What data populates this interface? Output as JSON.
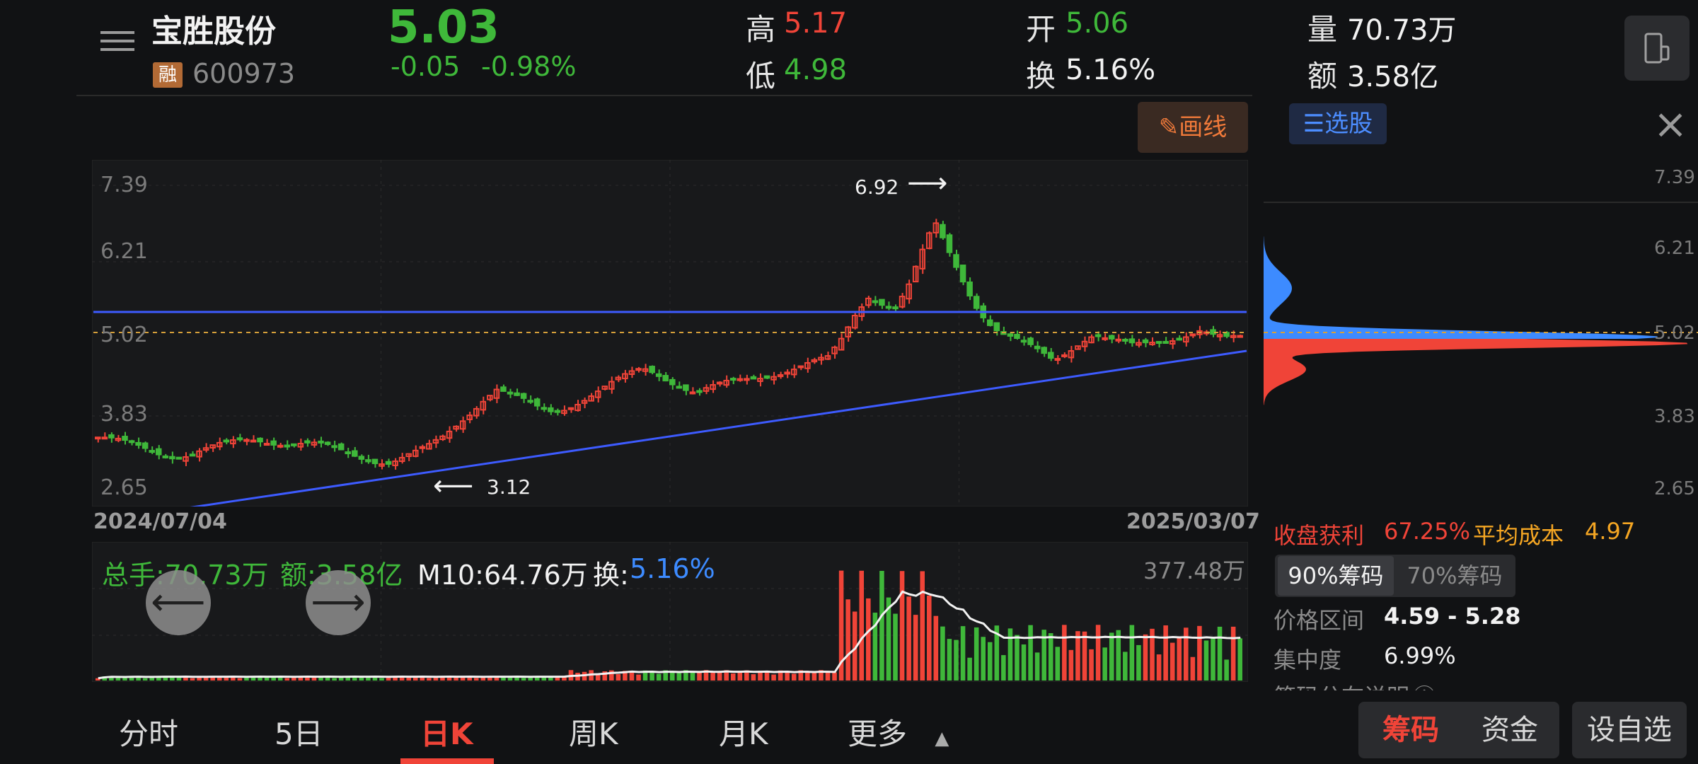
{
  "header": {
    "stock_name": "宝胜股份",
    "margin_tag": "融",
    "stock_code": "600973",
    "price": "5.03",
    "change": "-0.05",
    "change_pct": "-0.98%",
    "high_label": "高",
    "high_value": "5.17",
    "low_label": "低",
    "low_value": "4.98",
    "open_label": "开",
    "open_value": "5.06",
    "turnover_label": "换",
    "turnover_value": "5.16%",
    "volume_label": "量",
    "volume_value": "70.73万",
    "amount_label": "额",
    "amount_value": "3.58亿"
  },
  "toolbar": {
    "draw_label": "画线",
    "select_stock_label": "选股"
  },
  "main_chart": {
    "y_ticks": [
      "7.39",
      "6.21",
      "5.02",
      "3.83",
      "2.65"
    ],
    "start_date": "2024/07/04",
    "end_date": "2025/03/07",
    "annotation_high": "6.92",
    "annotation_low": "3.12"
  },
  "volume_panel": {
    "total_hands": "总手:70.73万",
    "amount": "额:3.58亿",
    "ma10": "M10:64.76万",
    "turnover_label": "换:",
    "turnover_value": "5.16%",
    "max_volume": "377.48万"
  },
  "chip_panel": {
    "y_ticks": [
      "7.39",
      "6.21",
      "5.02",
      "3.83",
      "2.65"
    ],
    "profit_label": "收盘获利",
    "profit_value": "67.25%",
    "avg_cost_label": "平均成本",
    "avg_cost_value": "4.97",
    "tab_90": "90%筹码",
    "tab_70": "70%筹码",
    "price_range_label": "价格区间",
    "price_range_value": "4.59 - 5.28",
    "concentration_label": "集中度",
    "concentration_value": "6.99%",
    "explanation_label": "筹码分布说明"
  },
  "bottom_nav": {
    "tabs": [
      "分时",
      "5日",
      "日K",
      "周K",
      "月K",
      "更多"
    ],
    "chips_label": "筹码",
    "funds_label": "资金",
    "add_watch_label": "设自选"
  },
  "colors": {
    "up": "#f04438",
    "down": "#3fb83a",
    "trendline": "#3d5bff",
    "chip_profit": "#3d8bff",
    "chip_loss": "#f04438"
  },
  "chart_data": {
    "type": "candlestick",
    "ylim": [
      2.65,
      7.39
    ],
    "x_range": [
      "2024/07/04",
      "2025/03/07"
    ],
    "approx_closes": [
      3.5,
      3.45,
      3.4,
      3.35,
      3.3,
      3.25,
      3.22,
      3.25,
      3.3,
      3.35,
      3.4,
      3.45,
      3.48,
      3.45,
      3.42,
      3.4,
      3.38,
      3.35,
      3.3,
      3.25,
      3.2,
      3.15,
      3.12,
      3.18,
      3.25,
      3.35,
      3.5,
      3.7,
      3.9,
      4.1,
      4.25,
      4.15,
      4.05,
      3.95,
      3.9,
      3.95,
      4.05,
      4.15,
      4.25,
      4.35,
      4.45,
      4.55,
      4.5,
      4.4,
      4.3,
      4.2,
      4.25,
      4.3,
      4.35,
      4.4,
      4.45,
      4.5,
      4.55,
      4.6,
      4.65,
      4.7,
      5.0,
      5.4,
      5.7,
      5.6,
      5.5,
      5.8,
      6.3,
      6.8,
      6.4,
      6.0,
      5.6,
      5.3,
      5.1,
      5.0,
      4.9,
      4.8,
      4.7,
      4.85,
      5.0,
      5.1,
      5.0,
      4.95,
      4.9,
      4.95,
      5.0,
      5.05,
      5.1,
      5.15,
      5.05,
      5.0,
      5.03
    ],
    "volume_max": "377.48万"
  }
}
